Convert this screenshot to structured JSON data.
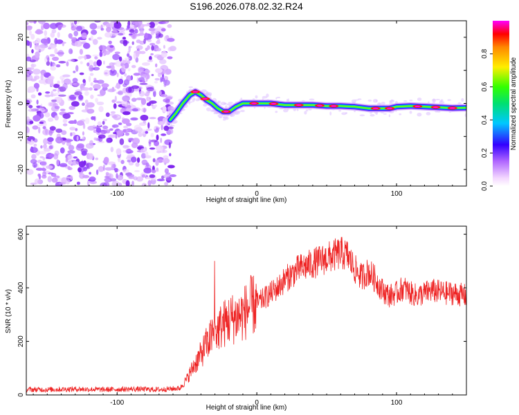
{
  "title": "S196.2026.078.02.32.R24",
  "chart_data": [
    {
      "type": "heatmap",
      "xlabel": "Height of straight line (km)",
      "ylabel": "Frequency (Hz)",
      "xlim": [
        -165,
        150
      ],
      "ylim": [
        -25,
        25
      ],
      "xticks": [
        -100,
        0,
        100
      ],
      "yticks": [
        -20,
        -10,
        0,
        10,
        20
      ],
      "xtick_labels": [
        "-100",
        "0",
        "100"
      ],
      "ytick_labels": [
        "-20",
        "-10",
        "0",
        "10",
        "20"
      ],
      "noise_region_x": [
        -165,
        -60
      ],
      "signal_track": {
        "x": [
          -62,
          -58,
          -53,
          -48,
          -44,
          -40,
          -36,
          -32,
          -28,
          -24,
          -20,
          -15,
          -10,
          -5,
          0,
          10,
          20,
          30,
          40,
          50,
          60,
          70,
          80,
          85,
          90,
          95,
          100,
          110,
          120,
          130,
          140,
          150
        ],
        "frequency": [
          -5,
          -3,
          0,
          2.5,
          3.5,
          2.5,
          1,
          0,
          -1.5,
          -2.5,
          -2.5,
          -1,
          0,
          0,
          0,
          0,
          -0.5,
          -0.5,
          -0.5,
          -0.8,
          -0.8,
          -1,
          -1.5,
          -1.5,
          -1.5,
          -1.5,
          -1,
          -0.8,
          -1,
          -1.2,
          -1.4,
          -1.3
        ]
      },
      "colorbar": {
        "label": "Normalized spectral amplitude",
        "ticks": [
          0.0,
          0.2,
          0.4,
          0.6,
          0.8
        ],
        "tick_labels": [
          "0.0",
          "0.2",
          "0.4",
          "0.6",
          "0.8"
        ],
        "range": [
          0,
          1
        ]
      }
    },
    {
      "type": "line",
      "xlabel": "Height of straight line (km)",
      "ylabel": "SNR (10 * v/v)",
      "xlim": [
        -165,
        150
      ],
      "ylim": [
        0,
        630
      ],
      "xticks": [
        -100,
        0,
        100
      ],
      "yticks": [
        0,
        200,
        400,
        600
      ],
      "xtick_labels": [
        "-100",
        "0",
        "100"
      ],
      "ytick_labels": [
        "0",
        "200",
        "400",
        "600"
      ],
      "series": [
        {
          "name": "SNR",
          "color": "#ee2222",
          "x": [
            -165,
            -150,
            -130,
            -110,
            -90,
            -70,
            -55,
            -50,
            -45,
            -40,
            -35,
            -30,
            -25,
            -20,
            -15,
            -10,
            -5,
            0,
            5,
            10,
            15,
            20,
            25,
            30,
            35,
            40,
            45,
            50,
            55,
            60,
            65,
            70,
            75,
            80,
            85,
            90,
            95,
            100,
            105,
            110,
            115,
            120,
            125,
            130,
            135,
            140,
            145,
            150
          ],
          "y": [
            20,
            20,
            22,
            20,
            22,
            20,
            25,
            60,
            110,
            150,
            200,
            230,
            260,
            280,
            290,
            300,
            330,
            340,
            360,
            380,
            400,
            430,
            450,
            470,
            480,
            490,
            500,
            510,
            520,
            530,
            520,
            470,
            440,
            460,
            430,
            390,
            370,
            380,
            400,
            380,
            370,
            380,
            390,
            385,
            380,
            380,
            375,
            370
          ]
        }
      ]
    }
  ]
}
